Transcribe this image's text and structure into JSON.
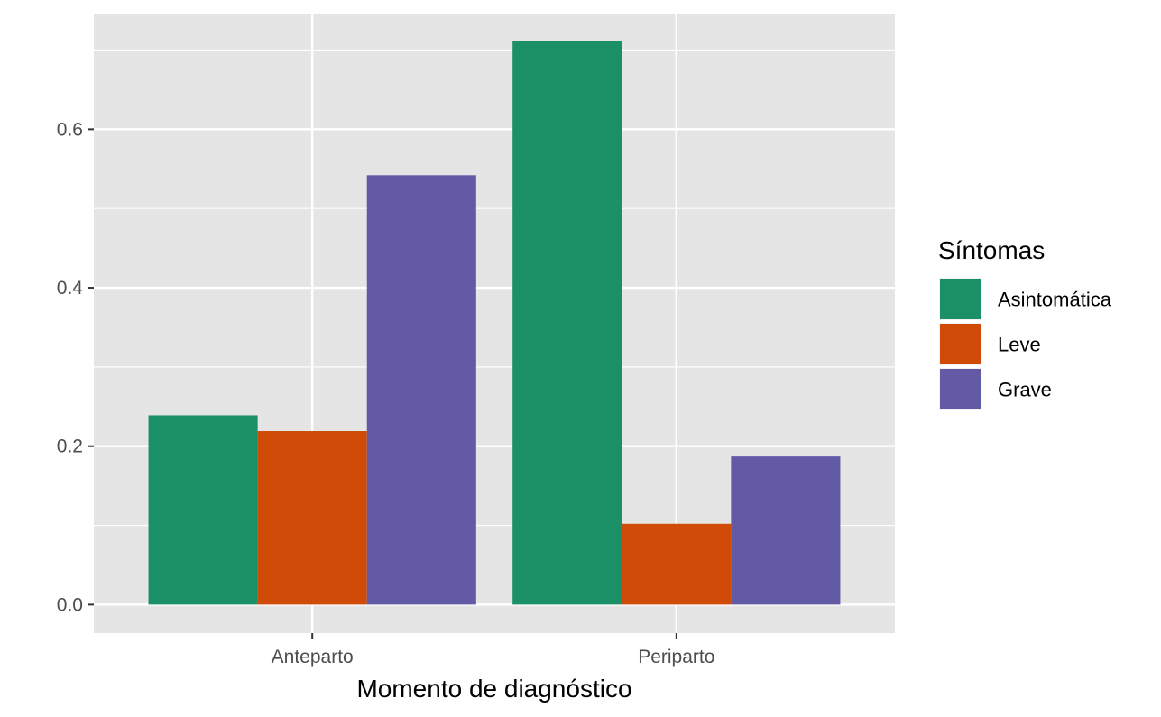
{
  "chart_data": {
    "type": "bar",
    "title": "",
    "xlabel": "Momento de diagnóstico",
    "ylabel": "",
    "categories": [
      "Anteparto",
      "Periparto"
    ],
    "ylim": [
      -0.036,
      0.745
    ],
    "yticks": [
      0.0,
      0.2,
      0.4,
      0.6
    ],
    "ytick_labels": [
      "0.0",
      "0.2",
      "0.4",
      "0.6"
    ],
    "grid": true,
    "background": "#e5e5e5",
    "legend": {
      "title": "Síntomas",
      "position": "right"
    },
    "series": [
      {
        "name": "Asintomática",
        "color": "#1b9066",
        "values": [
          0.239,
          0.711
        ]
      },
      {
        "name": "Leve",
        "color": "#d04b08",
        "values": [
          0.219,
          0.102
        ]
      },
      {
        "name": "Grave",
        "color": "#625aa5",
        "values": [
          0.542,
          0.187
        ]
      }
    ]
  }
}
